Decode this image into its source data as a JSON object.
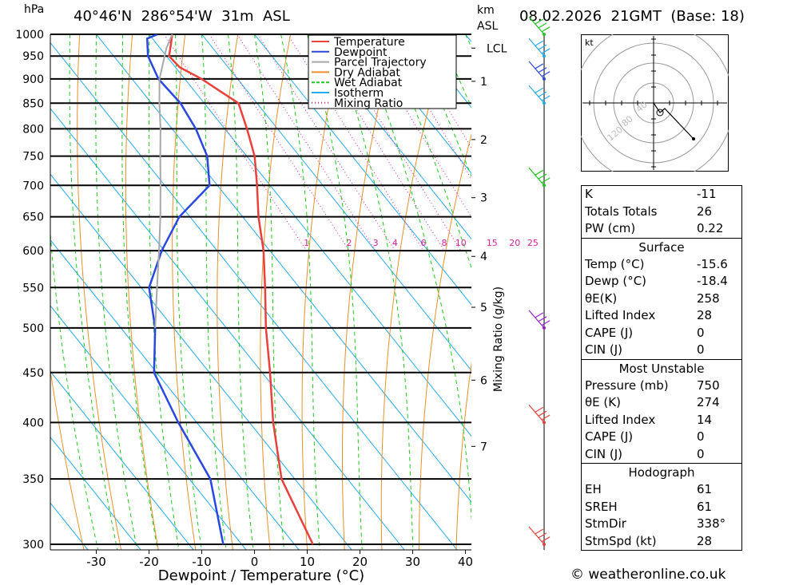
{
  "header": {
    "hpa_label": "hPa",
    "location": "40°46'N  286°54'W  31m  ASL",
    "km_label": "km",
    "asl_label": "ASL",
    "datetime": "08.02.2026  21GMT  (Base: 18)"
  },
  "legend": [
    {
      "label": "Temperature",
      "color": "#e8413c"
    },
    {
      "label": "Dewpoint",
      "color": "#2a48e0"
    },
    {
      "label": "Parcel Trajectory",
      "color": "#a8a8a8"
    },
    {
      "label": "Dry Adiabat",
      "color": "#e8902a"
    },
    {
      "label": "Wet Adiabat",
      "color": "#1ec81e"
    },
    {
      "label": "Isotherm",
      "color": "#22aaee"
    },
    {
      "label": "Mixing Ratio",
      "color": "#dd1f9e"
    }
  ],
  "chart_data": {
    "type": "line",
    "title": "Skew-T log-P diagram",
    "xlabel": "Dewpoint / Temperature (°C)",
    "ylabel": "hPa",
    "xlim": [
      -40,
      40
    ],
    "ylim": [
      1000,
      300
    ],
    "x_ticks": [
      -30,
      -20,
      -10,
      0,
      10,
      20,
      30,
      40
    ],
    "pressure_levels": [
      300,
      350,
      400,
      450,
      500,
      550,
      600,
      650,
      700,
      750,
      800,
      850,
      900,
      950,
      1000
    ],
    "km_ticks": [
      {
        "label": "7",
        "p": 378
      },
      {
        "label": "6",
        "p": 442
      },
      {
        "label": "5",
        "p": 525
      },
      {
        "label": "4",
        "p": 592
      },
      {
        "label": "3",
        "p": 680
      },
      {
        "label": "2",
        "p": 780
      },
      {
        "label": "1",
        "p": 895
      },
      {
        "label": "LCL",
        "p": 968
      }
    ],
    "mixing_ratio_label": "Mixing Ratio (g/kg)",
    "mixing_ratio_values": [
      "1",
      "2",
      "3",
      "4",
      "6",
      "8",
      "10",
      "15",
      "20",
      "25"
    ],
    "series": [
      {
        "name": "Temperature",
        "color": "#e8413c",
        "points": [
          [
            1000,
            -15.6
          ],
          [
            975,
            -17.5
          ],
          [
            950,
            -19.5
          ],
          [
            925,
            -19.2
          ],
          [
            900,
            -16.8
          ],
          [
            875,
            -15.2
          ],
          [
            850,
            -13.5
          ],
          [
            800,
            -15.8
          ],
          [
            750,
            -18.5
          ],
          [
            700,
            -22.5
          ],
          [
            650,
            -27.0
          ],
          [
            600,
            -31.2
          ],
          [
            550,
            -36.5
          ],
          [
            500,
            -42.5
          ],
          [
            450,
            -48.5
          ],
          [
            400,
            -55.5
          ],
          [
            350,
            -62.5
          ],
          [
            300,
            -66.5
          ]
        ]
      },
      {
        "name": "Dewpoint",
        "color": "#2a48e0",
        "points": [
          [
            1000,
            -18.4
          ],
          [
            990,
            -21.0
          ],
          [
            950,
            -23.5
          ],
          [
            900,
            -25.0
          ],
          [
            850,
            -24.5
          ],
          [
            800,
            -25.5
          ],
          [
            750,
            -27.5
          ],
          [
            700,
            -31.5
          ],
          [
            650,
            -42.0
          ],
          [
            600,
            -50.5
          ],
          [
            550,
            -58.5
          ],
          [
            500,
            -63.5
          ],
          [
            450,
            -70.5
          ],
          [
            400,
            -73.5
          ],
          [
            350,
            -76.0
          ],
          [
            300,
            -83.5
          ]
        ]
      },
      {
        "name": "Parcel Trajectory",
        "color": "#a8a8a8",
        "points": [
          [
            1000,
            -15.6
          ],
          [
            968,
            -18.8
          ],
          [
            900,
            -24.8
          ],
          [
            850,
            -28.5
          ],
          [
            800,
            -32.2
          ],
          [
            750,
            -36.4
          ],
          [
            700,
            -40.8
          ],
          [
            650,
            -45.6
          ],
          [
            600,
            -51.0
          ],
          [
            550,
            -57.0
          ],
          [
            500,
            -63.5
          ]
        ]
      }
    ]
  },
  "wind_barbs": [
    {
      "p": 300,
      "color": "#e8413c"
    },
    {
      "p": 400,
      "color": "#e8413c"
    },
    {
      "p": 500,
      "color": "#9b1fd0"
    },
    {
      "p": 700,
      "color": "#1ec81e"
    },
    {
      "p": 850,
      "color": "#22aaee"
    },
    {
      "p": 900,
      "color": "#2a48e0"
    },
    {
      "p": 950,
      "color": "#22aaee"
    },
    {
      "p": 1000,
      "color": "#1ec81e"
    }
  ],
  "hodograph": {
    "unit_label": "kt",
    "ring_labels": [
      "40",
      "80",
      "120"
    ]
  },
  "table": {
    "top": [
      {
        "label": "K",
        "value": "-11"
      },
      {
        "label": "Totals Totals",
        "value": "26"
      },
      {
        "label": "PW (cm)",
        "value": "0.22"
      }
    ],
    "surface": {
      "title": "Surface",
      "rows": [
        {
          "label": "Temp (°C)",
          "value": "-15.6"
        },
        {
          "label": "Dewp (°C)",
          "value": "-18.4"
        },
        {
          "label": "θE(K)",
          "value": "258"
        },
        {
          "label": "Lifted Index",
          "value": "28"
        },
        {
          "label": "CAPE (J)",
          "value": "0"
        },
        {
          "label": "CIN (J)",
          "value": "0"
        }
      ]
    },
    "most_unstable": {
      "title": "Most Unstable",
      "rows": [
        {
          "label": "Pressure (mb)",
          "value": "750"
        },
        {
          "label": "θE (K)",
          "value": "274"
        },
        {
          "label": "Lifted Index",
          "value": "14"
        },
        {
          "label": "CAPE (J)",
          "value": "0"
        },
        {
          "label": "CIN (J)",
          "value": "0"
        }
      ]
    },
    "hodograph": {
      "title": "Hodograph",
      "rows": [
        {
          "label": "EH",
          "value": "61"
        },
        {
          "label": "SREH",
          "value": "61"
        },
        {
          "label": "StmDir",
          "value": "338°"
        },
        {
          "label": "StmSpd (kt)",
          "value": "28"
        }
      ]
    }
  },
  "footer": {
    "copyright": "© weatheronline.co.uk"
  }
}
